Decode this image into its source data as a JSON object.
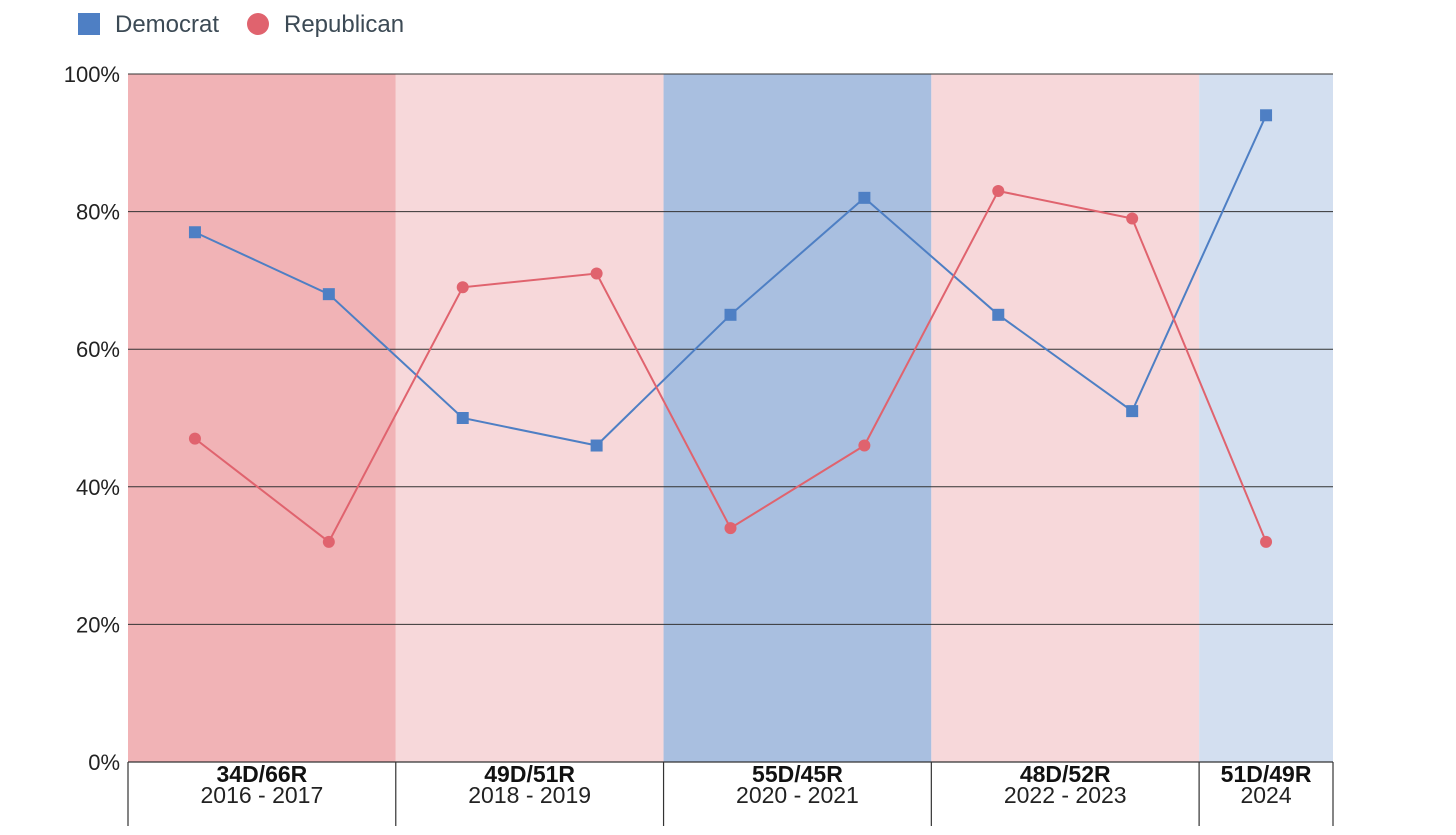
{
  "chart_data": {
    "type": "line",
    "title": "",
    "xlabel": "",
    "ylabel": "",
    "ylim": [
      0,
      100
    ],
    "y_ticks": [
      "0%",
      "20%",
      "40%",
      "60%",
      "80%",
      "100%"
    ],
    "grid": true,
    "legend_position": "top-left",
    "x": [
      1,
      2,
      3,
      4,
      5,
      6,
      7,
      8,
      9
    ],
    "series": [
      {
        "name": "Democrat",
        "marker": "square",
        "color": "#4e7fc4",
        "values": [
          77,
          68,
          50,
          46,
          65,
          82,
          65,
          51,
          94
        ]
      },
      {
        "name": "Republican",
        "marker": "circle",
        "color": "#e0636e",
        "values": [
          47,
          32,
          69,
          71,
          34,
          46,
          83,
          79,
          32
        ]
      }
    ],
    "periods": [
      {
        "split": "34D/66R",
        "years": "2016 - 2017",
        "x_start": 0.5,
        "x_end": 2.5,
        "color": "#f1b3b6"
      },
      {
        "split": "49D/51R",
        "years": "2018 - 2019",
        "x_start": 2.5,
        "x_end": 4.5,
        "color": "#f7d8da"
      },
      {
        "split": "55D/45R",
        "years": "2020 - 2021",
        "x_start": 4.5,
        "x_end": 6.5,
        "color": "#a9bfe0"
      },
      {
        "split": "48D/52R",
        "years": "2022 - 2023",
        "x_start": 6.5,
        "x_end": 8.5,
        "color": "#f7d8da"
      },
      {
        "split": "51D/49R",
        "years": "2024",
        "x_start": 8.5,
        "x_end": 9.5,
        "color": "#d3dff0"
      }
    ]
  }
}
